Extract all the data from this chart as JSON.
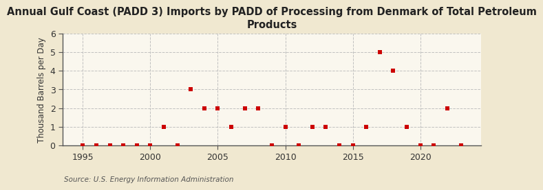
{
  "title": "Annual Gulf Coast (PADD 3) Imports by PADD of Processing from Denmark of Total Petroleum\nProducts",
  "ylabel": "Thousand Barrels per Day",
  "source": "Source: U.S. Energy Information Administration",
  "fig_background_color": "#f0e8d0",
  "plot_background_color": "#faf7ee",
  "years": [
    1995,
    1996,
    1997,
    1998,
    1999,
    2000,
    2001,
    2002,
    2003,
    2004,
    2005,
    2006,
    2007,
    2008,
    2009,
    2010,
    2011,
    2012,
    2013,
    2014,
    2015,
    2016,
    2017,
    2018,
    2019,
    2020,
    2021,
    2022,
    2023
  ],
  "values": [
    0,
    0,
    0,
    0,
    0,
    0,
    1,
    0,
    3,
    2,
    2,
    1,
    2,
    2,
    0,
    1,
    0,
    1,
    1,
    0,
    0,
    1,
    5,
    4,
    1,
    0,
    0,
    2,
    0
  ],
  "marker_color": "#cc0000",
  "marker_size": 18,
  "grid_color": "#bbbbbb",
  "vline_color": "#bbbbbb",
  "spine_color": "#555555",
  "xlim": [
    1993.5,
    2024.5
  ],
  "ylim": [
    0,
    6
  ],
  "yticks": [
    0,
    1,
    2,
    3,
    4,
    5,
    6
  ],
  "xticks": [
    1995,
    2000,
    2005,
    2010,
    2015,
    2020
  ],
  "title_fontsize": 10.5,
  "ylabel_fontsize": 8.5,
  "tick_fontsize": 9,
  "source_fontsize": 7.5
}
